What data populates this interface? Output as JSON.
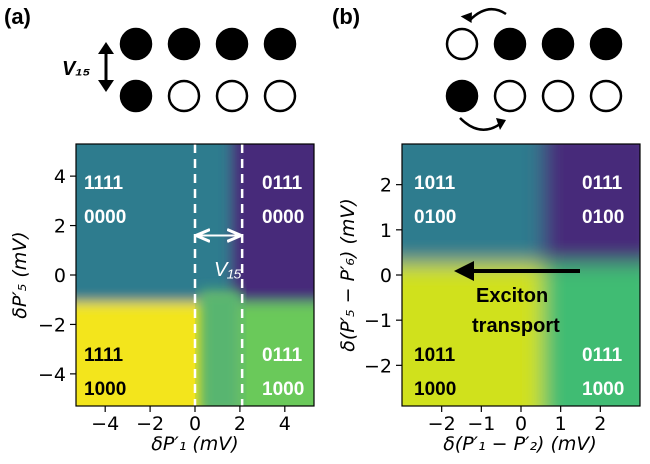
{
  "panels": {
    "a": {
      "label": "(a)",
      "coupling_label": "V₁₅",
      "gap_label": "V₁₅"
    },
    "b": {
      "label": "(b)",
      "annotation_line1": "Exciton",
      "annotation_line2": "transport"
    }
  },
  "dot_arrays": {
    "a": {
      "top_row": [
        1,
        1,
        1,
        1
      ],
      "bottom_row": [
        1,
        0,
        0,
        0
      ]
    },
    "b": {
      "top_row": [
        0,
        1,
        1,
        1
      ],
      "bottom_row": [
        1,
        0,
        0,
        0
      ]
    }
  },
  "chart_data": [
    {
      "type": "heatmap",
      "panel": "a",
      "xlabel": "δP′₁ (mV)",
      "ylabel": "δP′₅ (mV)",
      "xlim": [
        -5.3,
        5.3
      ],
      "ylim": [
        -5.3,
        5.3
      ],
      "xticks": [
        -4,
        -2,
        0,
        2,
        4
      ],
      "yticks": [
        -4,
        -2,
        0,
        2,
        4
      ],
      "dashed_lines_x": [
        0,
        2.1
      ],
      "regions": [
        {
          "top": "1111",
          "bottom": "0000",
          "color": "#2e7c8e",
          "text_color": "#ffffff"
        },
        {
          "top": "0111",
          "bottom": "0000",
          "color": "#472a7a",
          "text_color": "#ffffff"
        },
        {
          "top": "1111",
          "bottom": "1000",
          "color": "#f3e51f",
          "text_color": "#000000"
        },
        {
          "top": "0111",
          "bottom": "1000",
          "color": "#6bc95a",
          "text_color": "#ffffff"
        }
      ]
    },
    {
      "type": "heatmap",
      "panel": "b",
      "xlabel": "δ(P′₁ − P′₂) (mV)",
      "ylabel": "δ(P′₅ − P′₆) (mV)",
      "xlim": [
        -3.0,
        3.0
      ],
      "ylim": [
        -2.9,
        2.9
      ],
      "xticks": [
        -2,
        -1,
        0,
        1,
        2
      ],
      "yticks": [
        -2,
        -1,
        0,
        1,
        2
      ],
      "regions": [
        {
          "top": "1011",
          "bottom": "0100",
          "color": "#2e7c8e",
          "text_color": "#ffffff"
        },
        {
          "top": "0111",
          "bottom": "0100",
          "color": "#472a7a",
          "text_color": "#ffffff"
        },
        {
          "top": "1011",
          "bottom": "1000",
          "color": "#d0e11c",
          "text_color": "#000000"
        },
        {
          "top": "0111",
          "bottom": "1000",
          "color": "#3fbc73",
          "text_color": "#ffffff"
        }
      ]
    }
  ]
}
